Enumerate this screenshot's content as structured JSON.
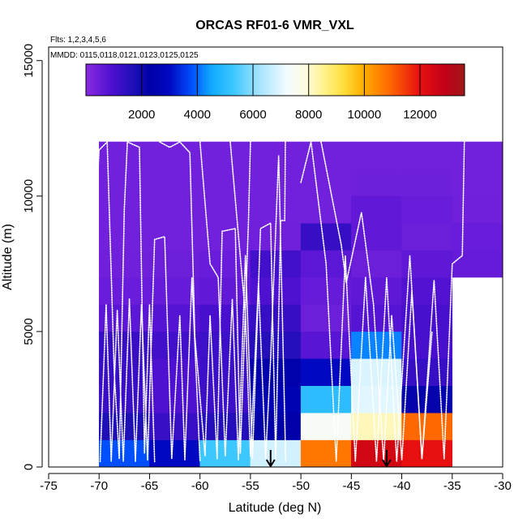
{
  "chart_data": {
    "type": "heatmap",
    "title": "ORCAS RF01-6 VMR_VXL",
    "subtitle_flights": "Flts: 1,2,3,4,5,6",
    "subtitle_dates": "MMDD: 0115,0118,0121,0123,0125,0125",
    "xlabel": "Latitude (deg N)",
    "ylabel": "Altitude (m)",
    "xlim": [
      -75,
      -30
    ],
    "ylim": [
      0,
      15500
    ],
    "x_ticks": [
      -75,
      -70,
      -65,
      -60,
      -55,
      -50,
      -45,
      -40,
      -35,
      -30
    ],
    "x_tick_labels": [
      "-75",
      "-70",
      "-65",
      "-60",
      "-55",
      "-50",
      "-45",
      "-40",
      "-35",
      "-30"
    ],
    "y_ticks": [
      0,
      5000,
      10000,
      15000
    ],
    "y_tick_labels": [
      "0",
      "5000",
      "10000",
      "15000"
    ],
    "colorbar": {
      "range": [
        0,
        13600
      ],
      "ticks": [
        2000,
        4000,
        6000,
        8000,
        10000,
        12000
      ],
      "tick_labels": [
        "2000",
        "4000",
        "6000",
        "8000",
        "10000",
        "12000"
      ]
    },
    "grid": {
      "lat_edges": [
        -70,
        -65,
        -60,
        -55,
        -50,
        -45,
        -40,
        -35,
        -30
      ],
      "alt_edges": [
        0,
        1000,
        2000,
        3000,
        4000,
        5000,
        6000,
        7000,
        8000,
        9000,
        10000,
        11000,
        12000
      ],
      "values": [
        [
          3800,
          3000,
          5300,
          6800,
          10700,
          12500,
          12000,
          null
        ],
        [
          1700,
          1250,
          1600,
          2300,
          7400,
          8200,
          10900,
          null
        ],
        [
          1250,
          900,
          1200,
          2600,
          5000,
          7000,
          2200,
          null
        ],
        [
          1250,
          900,
          1200,
          2400,
          3000,
          6900,
          1300,
          null
        ],
        [
          1250,
          1100,
          1200,
          1600,
          750,
          4200,
          1000,
          null
        ],
        [
          700,
          800,
          1000,
          1300,
          450,
          800,
          1000,
          null
        ],
        [
          500,
          550,
          600,
          900,
          550,
          650,
          850,
          null
        ],
        [
          400,
          450,
          500,
          1100,
          700,
          450,
          650,
          550
        ],
        [
          380,
          380,
          380,
          400,
          1300,
          600,
          450,
          500
        ],
        [
          380,
          380,
          380,
          380,
          380,
          600,
          500,
          400
        ],
        [
          380,
          380,
          380,
          380,
          380,
          420,
          420,
          380
        ],
        [
          380,
          380,
          380,
          380,
          380,
          380,
          380,
          380
        ]
      ]
    },
    "arrows": [
      {
        "lat": -53,
        "alt": 0
      },
      {
        "lat": -41.5,
        "alt": 0
      }
    ],
    "flight_tracks": [
      {
        "name": "track-1",
        "points": [
          [
            -70.8,
            800
          ],
          [
            -70.4,
            8600
          ],
          [
            -70.0,
            11700
          ],
          [
            -69.2,
            12000
          ],
          [
            -68.5,
            3500
          ],
          [
            -68.0,
            300
          ],
          [
            -67.5,
            9500
          ],
          [
            -67.2,
            12000
          ],
          [
            -66.0,
            11800
          ],
          [
            -65.5,
            500
          ],
          [
            -65.0,
            6000
          ],
          [
            -64.5,
            200
          ]
        ]
      },
      {
        "name": "track-2",
        "points": [
          [
            -69.9,
            200
          ],
          [
            -69.3,
            6000
          ],
          [
            -68.8,
            200
          ],
          [
            -68.2,
            5800
          ],
          [
            -67.6,
            200
          ],
          [
            -67.0,
            6200
          ],
          [
            -66.4,
            200
          ],
          [
            -65.8,
            6000
          ],
          [
            -65.2,
            250
          ],
          [
            -64.5,
            8400
          ],
          [
            -63.5,
            8500
          ],
          [
            -62.8,
            300
          ],
          [
            -62.0,
            5600
          ],
          [
            -61.5,
            250
          ],
          [
            -60.8,
            7000
          ],
          [
            -60.0,
            200
          ]
        ]
      },
      {
        "name": "track-3",
        "points": [
          [
            -64.0,
            12000
          ],
          [
            -63.0,
            11800
          ],
          [
            -62.0,
            12000
          ],
          [
            -61.0,
            11600
          ],
          [
            -60.5,
            4800
          ],
          [
            -59.5,
            400
          ],
          [
            -59.0,
            5600
          ],
          [
            -58.3,
            300
          ],
          [
            -57.8,
            8700
          ],
          [
            -56.5,
            8800
          ],
          [
            -56.0,
            500
          ],
          [
            -55.2,
            9000
          ],
          [
            -55.0,
            12000
          ]
        ]
      },
      {
        "name": "track-4",
        "points": [
          [
            -60.0,
            12000
          ],
          [
            -59.0,
            7500
          ],
          [
            -58.2,
            7000
          ],
          [
            -57.5,
            400
          ],
          [
            -56.8,
            6200
          ],
          [
            -56.2,
            250
          ],
          [
            -55.5,
            7800
          ],
          [
            -54.8,
            300
          ],
          [
            -54.0,
            8800
          ],
          [
            -53.0,
            9000
          ],
          [
            -52.5,
            300
          ],
          [
            -52.0,
            9100
          ],
          [
            -51.6,
            9100
          ],
          [
            -51.5,
            13500
          ]
        ]
      },
      {
        "name": "track-5",
        "points": [
          [
            -57.0,
            12000
          ],
          [
            -55.5,
            5600
          ],
          [
            -55.0,
            400
          ],
          [
            -54.2,
            6800
          ],
          [
            -53.5,
            300
          ],
          [
            -53.0,
            4000
          ],
          [
            -52.2,
            11500
          ],
          [
            -51.5,
            200
          ]
        ]
      },
      {
        "name": "track-6",
        "points": [
          [
            -50.0,
            10500
          ],
          [
            -49.0,
            12000
          ],
          [
            -47.5,
            7500
          ],
          [
            -46.5,
            200
          ],
          [
            -45.6,
            7800
          ],
          [
            -44.6,
            200
          ],
          [
            -43.6,
            7000
          ],
          [
            -42.5,
            200
          ],
          [
            -41.5,
            7000
          ],
          [
            -40.5,
            200
          ],
          [
            -39.2,
            7800
          ],
          [
            -38.0,
            300
          ],
          [
            -36.8,
            6900
          ],
          [
            -35.8,
            300
          ],
          [
            -35.0,
            7500
          ],
          [
            -34.0,
            7800
          ],
          [
            -33.8,
            12000
          ]
        ]
      },
      {
        "name": "track-7",
        "points": [
          [
            -48.0,
            12000
          ],
          [
            -46.0,
            8200
          ],
          [
            -45.5,
            6800
          ],
          [
            -44.0,
            9400
          ],
          [
            -42.8,
            6000
          ],
          [
            -41.8,
            200
          ],
          [
            -41.0,
            5600
          ],
          [
            -40.0,
            250
          ],
          [
            -39.0,
            6500
          ],
          [
            -38.0,
            300
          ],
          [
            -37.0,
            5000
          ]
        ]
      }
    ]
  }
}
